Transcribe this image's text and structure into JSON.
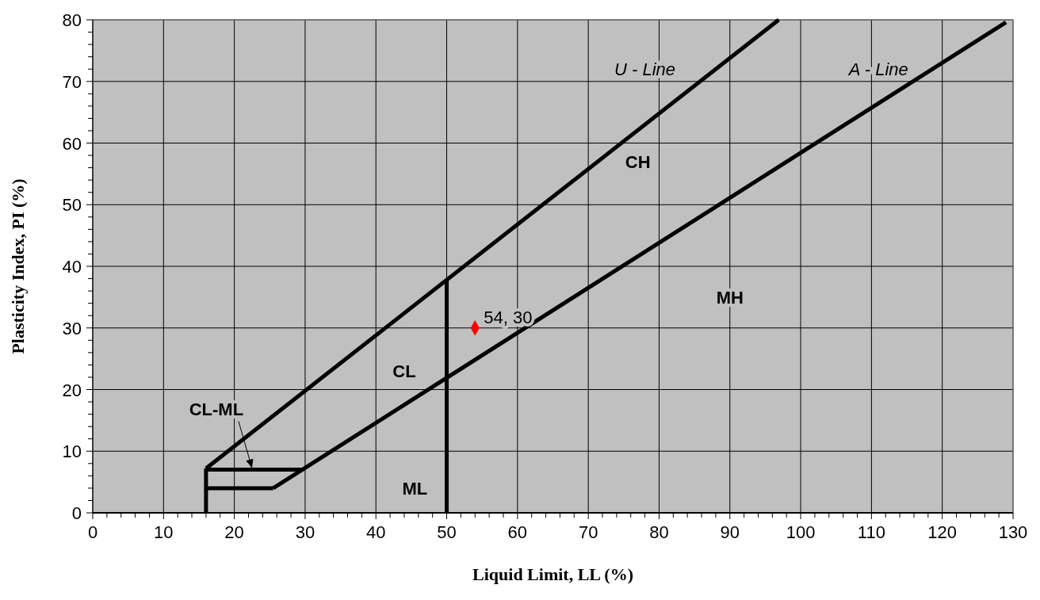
{
  "chart_data": {
    "type": "line",
    "xlabel": "Liquid Limit, LL (%)",
    "ylabel": "Plasticity Index, PI (%)",
    "xlim": [
      0,
      130
    ],
    "ylim": [
      0,
      80
    ],
    "xticks": [
      0,
      {
        "value": 2,
        "label": null
      },
      {
        "value": 4,
        "label": null
      },
      {
        "value": 6,
        "label": null
      },
      {
        "value": 8,
        "label": null
      },
      10,
      {
        "value": 12,
        "label": null
      },
      {
        "value": 14,
        "label": null
      },
      {
        "value": 16,
        "label": null
      },
      {
        "value": 18,
        "label": null
      },
      20,
      {
        "value": 22,
        "label": null
      },
      {
        "value": 24,
        "label": null
      },
      {
        "value": 26,
        "label": null
      },
      {
        "value": 28,
        "label": null
      },
      30,
      {
        "value": 32,
        "label": null
      },
      {
        "value": 34,
        "label": null
      },
      {
        "value": 36,
        "label": null
      },
      {
        "value": 38,
        "label": null
      },
      40,
      {
        "value": 42,
        "label": null
      },
      {
        "value": 44,
        "label": null
      },
      {
        "value": 46,
        "label": null
      },
      {
        "value": 48,
        "label": null
      },
      50,
      {
        "value": 52,
        "label": null
      },
      {
        "value": 54,
        "label": null
      },
      {
        "value": 56,
        "label": null
      },
      {
        "value": 58,
        "label": null
      },
      60,
      {
        "value": 62,
        "label": null
      },
      {
        "value": 64,
        "label": null
      },
      {
        "value": 66,
        "label": null
      },
      {
        "value": 68,
        "label": null
      },
      70,
      {
        "value": 72,
        "label": null
      },
      {
        "value": 74,
        "label": null
      },
      {
        "value": 76,
        "label": null
      },
      {
        "value": 78,
        "label": null
      },
      80,
      {
        "value": 82,
        "label": null
      },
      {
        "value": 84,
        "label": null
      },
      {
        "value": 86,
        "label": null
      },
      {
        "value": 88,
        "label": null
      },
      90,
      {
        "value": 92,
        "label": null
      },
      {
        "value": 94,
        "label": null
      },
      {
        "value": 96,
        "label": null
      },
      {
        "value": 98,
        "label": null
      },
      100,
      {
        "value": 102,
        "label": null
      },
      {
        "value": 104,
        "label": null
      },
      {
        "value": 106,
        "label": null
      },
      {
        "value": 108,
        "label": null
      },
      110,
      {
        "value": 112,
        "label": null
      },
      {
        "value": 114,
        "label": null
      },
      {
        "value": 116,
        "label": null
      },
      {
        "value": 118,
        "label": null
      },
      120,
      {
        "value": 122,
        "label": null
      },
      {
        "value": 124,
        "label": null
      },
      {
        "value": 126,
        "label": null
      },
      {
        "value": 128,
        "label": null
      },
      130
    ],
    "yticks": [
      0,
      {
        "value": 2,
        "label": null
      },
      {
        "value": 4,
        "label": null
      },
      {
        "value": 6,
        "label": null
      },
      {
        "value": 8,
        "label": null
      },
      10,
      {
        "value": 12,
        "label": null
      },
      {
        "value": 14,
        "label": null
      },
      {
        "value": 16,
        "label": null
      },
      {
        "value": 18,
        "label": null
      },
      20,
      {
        "value": 22,
        "label": null
      },
      {
        "value": 24,
        "label": null
      },
      {
        "value": 26,
        "label": null
      },
      {
        "value": 28,
        "label": null
      },
      30,
      {
        "value": 32,
        "label": null
      },
      {
        "value": 34,
        "label": null
      },
      {
        "value": 36,
        "label": null
      },
      {
        "value": 38,
        "label": null
      },
      40,
      {
        "value": 42,
        "label": null
      },
      {
        "value": 44,
        "label": null
      },
      {
        "value": 46,
        "label": null
      },
      {
        "value": 48,
        "label": null
      },
      50,
      {
        "value": 52,
        "label": null
      },
      {
        "value": 54,
        "label": null
      },
      {
        "value": 56,
        "label": null
      },
      {
        "value": 58,
        "label": null
      },
      60,
      {
        "value": 62,
        "label": null
      },
      {
        "value": 64,
        "label": null
      },
      {
        "value": 66,
        "label": null
      },
      {
        "value": 68,
        "label": null
      },
      70,
      {
        "value": 72,
        "label": null
      },
      {
        "value": 74,
        "label": null
      },
      {
        "value": 76,
        "label": null
      },
      {
        "value": 78,
        "label": null
      },
      80
    ],
    "grid": true,
    "line_style": "solid",
    "series": [
      {
        "color": "#000000",
        "x": [
          16,
          96.9
        ],
        "values": [
          7.2,
          80
        ]
      },
      {
        "color": "#000000",
        "x": [
          25.5,
          129
        ],
        "values": [
          4,
          79.6
        ]
      },
      {
        "color": "#000000",
        "x": [
          16,
          16
        ],
        "values": [
          0,
          7.2
        ]
      },
      {
        "color": "#000000",
        "x": [
          16,
          25.5
        ],
        "values": [
          4,
          4
        ]
      },
      {
        "color": "#000000",
        "x": [
          16,
          29.6
        ],
        "values": [
          7,
          7
        ]
      },
      {
        "color": "#000000",
        "x": [
          50,
          50
        ],
        "values": [
          0,
          37.8
        ]
      },
      {
        "type": "scatter",
        "marker": "diamond",
        "color": "#ff0000",
        "x": [
          54
        ],
        "values": [
          30
        ],
        "value_labels": [
          "54, 30"
        ]
      }
    ],
    "annotations": [
      "U - Line",
      "A - Line",
      "CH",
      "MH",
      "CL",
      "ML",
      {
        "text": "CL-ML",
        "x": 22.5,
        "y": 7
      }
    ]
  }
}
